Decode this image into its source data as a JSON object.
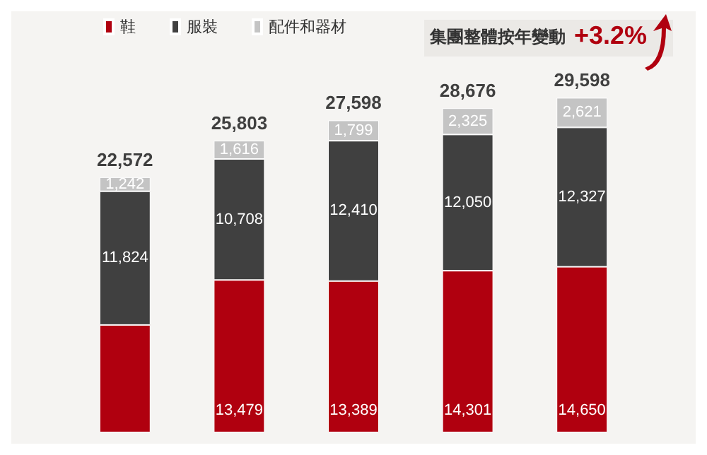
{
  "chart_data": {
    "type": "bar",
    "stacked": true,
    "categories": [
      null,
      null,
      null,
      null,
      null
    ],
    "series": [
      {
        "name": "鞋",
        "color": "#b0000f",
        "values": [
          9506,
          13479,
          13389,
          14301,
          14650
        ],
        "value_labels": [
          null,
          "13,479",
          "13,389",
          "14,301",
          "14,650"
        ]
      },
      {
        "name": "服裝",
        "color": "#404040",
        "values": [
          11824,
          10708,
          12410,
          12050,
          12327
        ],
        "value_labels": [
          "11,824",
          "10,708",
          "12,410",
          "12,050",
          "12,327"
        ]
      },
      {
        "name": "配件和器材",
        "color": "#c4c4c4",
        "values": [
          1242,
          1616,
          1799,
          2325,
          2621
        ],
        "value_labels": [
          "1,242",
          "1,616",
          "1,799",
          "2,325",
          "2,621"
        ]
      }
    ],
    "totals": [
      "22,572",
      "25,803",
      "27,598",
      "28,676",
      "29,598"
    ],
    "annotations": [
      "集團整體按年變動",
      "+3.2%"
    ],
    "legend": "top left"
  }
}
